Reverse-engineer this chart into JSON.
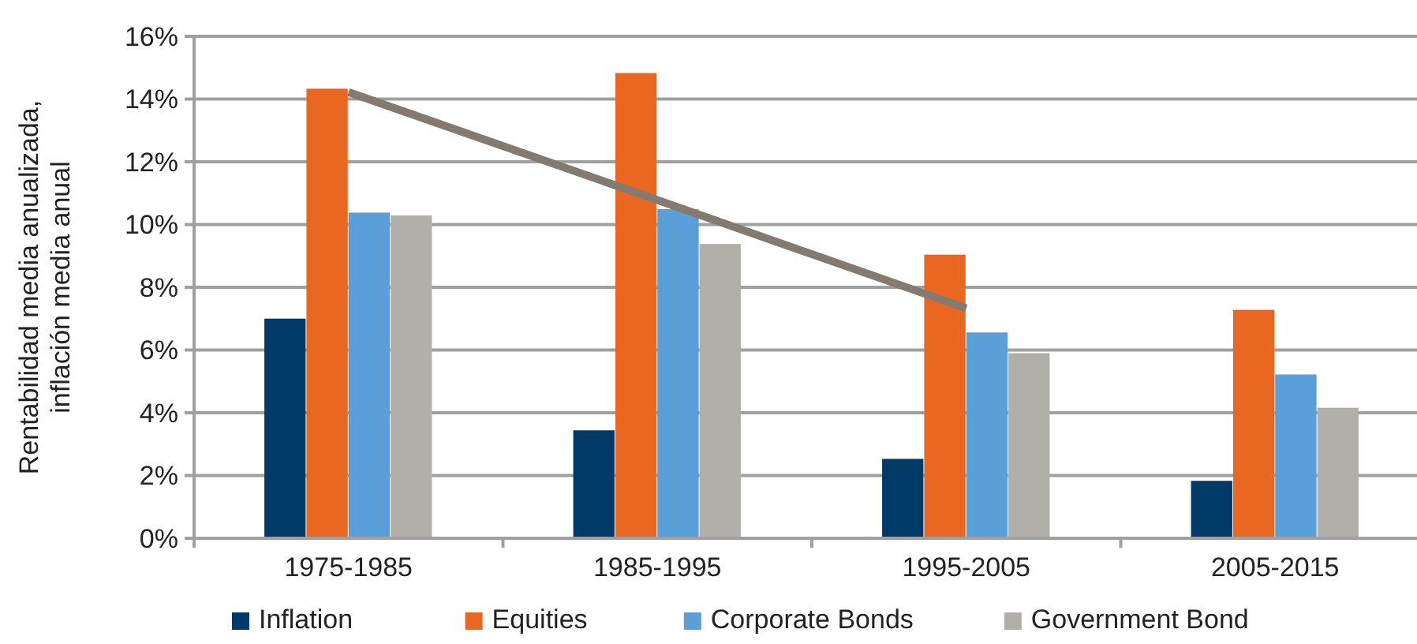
{
  "chart_data": {
    "type": "bar",
    "ylabel": "Rentabilidad media anualizada, inflación media anual",
    "categories": [
      "1975-1985",
      "1985-1995",
      "1995-2005",
      "2005-2015"
    ],
    "series": [
      {
        "name": "Inflation",
        "color": "#003a68",
        "values": [
          7.0,
          3.44,
          2.53,
          1.83
        ]
      },
      {
        "name": "Equities",
        "color": "#ea6721",
        "values": [
          14.33,
          14.83,
          9.04,
          7.28
        ]
      },
      {
        "name": "Corporate Bonds",
        "color": "#5b9fd9",
        "values": [
          10.38,
          10.49,
          6.56,
          5.22
        ]
      },
      {
        "name": "Government Bond",
        "color": "#b0b0a8",
        "values": [
          10.29,
          9.38,
          5.9,
          4.16
        ]
      },
      {
        "type": "line",
        "color": "#857a70",
        "values": [
          14.22,
          10.78,
          7.33,
          null
        ]
      }
    ],
    "ylim": [
      0,
      16
    ],
    "yticks": [
      {
        "value": 0,
        "label": "0%"
      },
      {
        "value": 2,
        "label": "2%"
      },
      {
        "value": 4,
        "label": "4%"
      },
      {
        "value": 6,
        "label": "6%"
      },
      {
        "value": 8,
        "label": "8%"
      },
      {
        "value": 10,
        "label": "10%"
      },
      {
        "value": 12,
        "label": "12%"
      },
      {
        "value": 14,
        "label": "14%"
      },
      {
        "value": 16,
        "label": "16%"
      }
    ],
    "grid": "y",
    "legend": "bottom"
  }
}
